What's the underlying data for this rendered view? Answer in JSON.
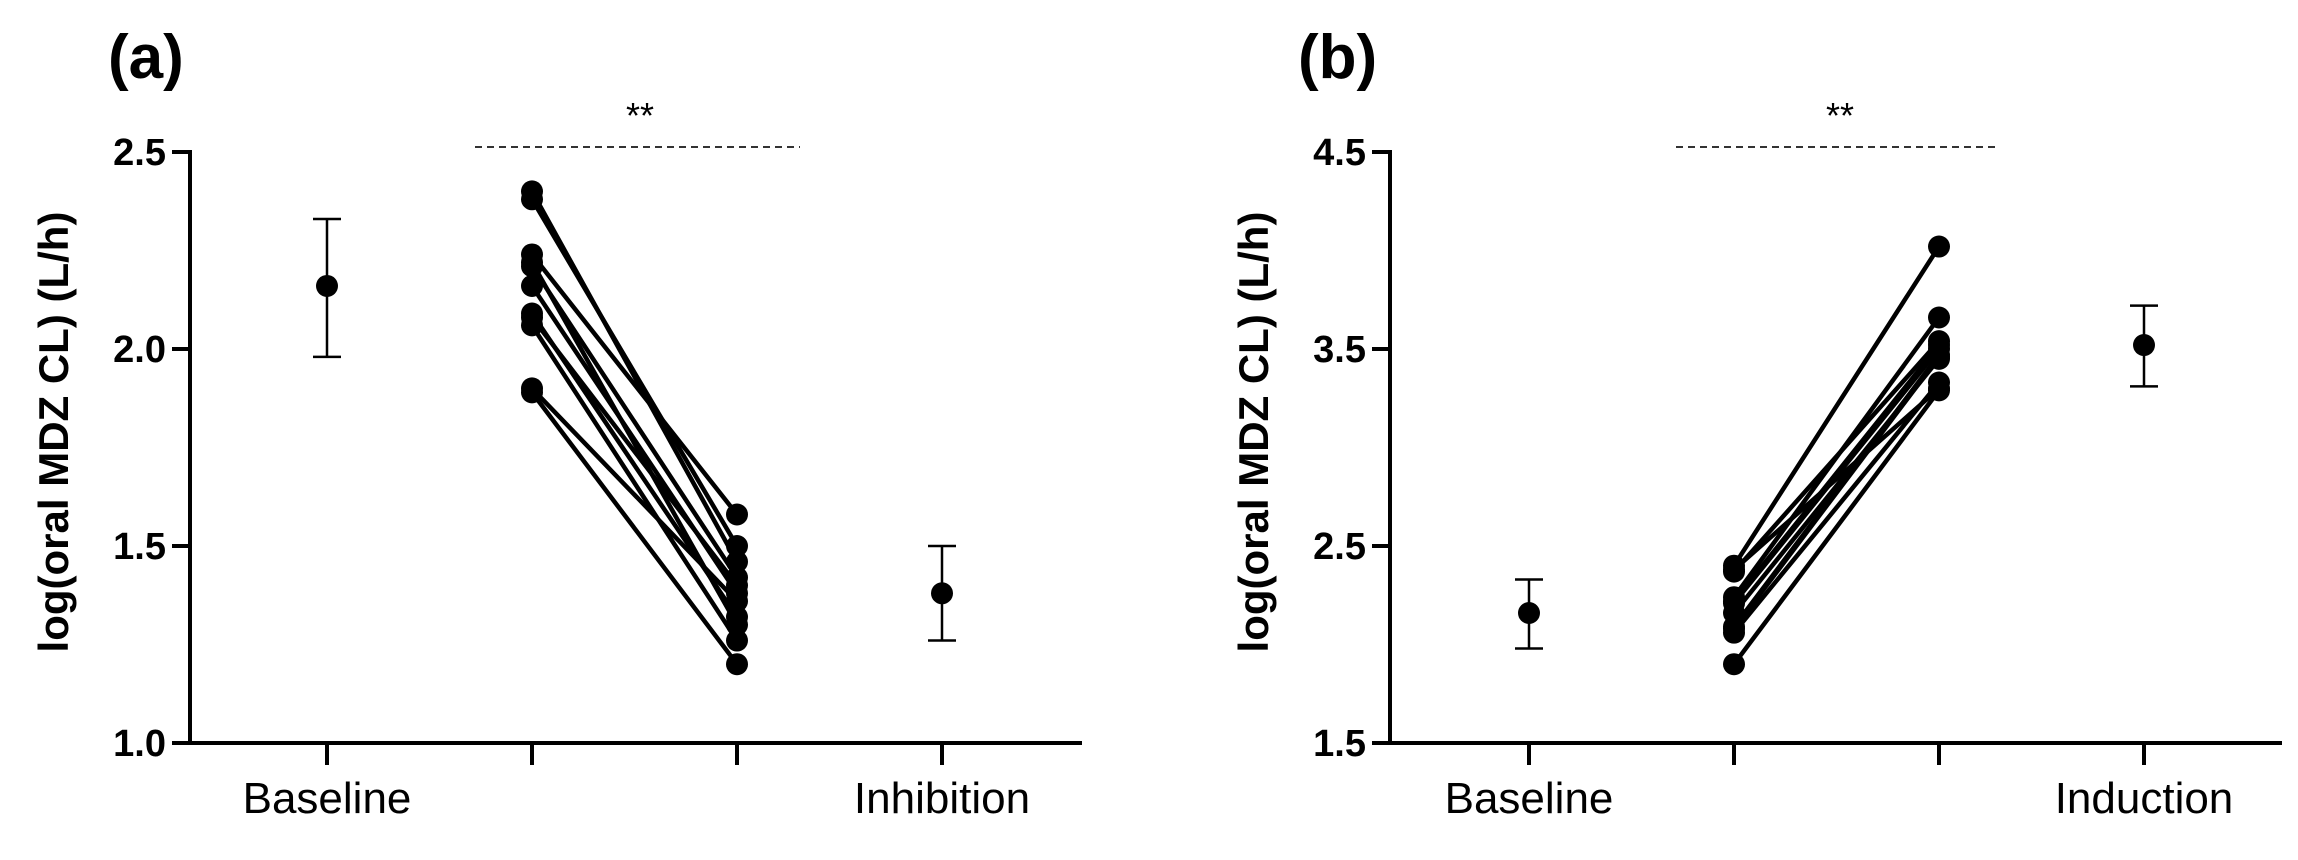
{
  "chart_data": [
    {
      "panel": "(a)",
      "type": "scatter",
      "ylabel": "log(oral MDZ CL) (L/h)",
      "ylim": [
        1.0,
        2.5
      ],
      "yticks": [
        "1.0",
        "1.5",
        "2.0",
        "2.5"
      ],
      "yticks_values": [
        1.0,
        1.5,
        2.0,
        2.5
      ],
      "x_tick_labels": [
        "Baseline",
        "",
        "",
        "Inhibition"
      ],
      "significance": "**",
      "summary_points": [
        {
          "x": 0,
          "label": "Baseline",
          "mean": 2.16,
          "lower": 1.98,
          "upper": 2.33
        },
        {
          "x": 3,
          "label": "Inhibition",
          "mean": 1.38,
          "lower": 1.26,
          "upper": 1.5
        }
      ],
      "paired_series": {
        "x": [
          1,
          2
        ],
        "pairs": [
          [
            2.4,
            1.46
          ],
          [
            2.38,
            1.5
          ],
          [
            2.24,
            1.58
          ],
          [
            2.21,
            1.42
          ],
          [
            2.16,
            1.38
          ],
          [
            2.09,
            1.32
          ],
          [
            2.06,
            1.26
          ],
          [
            1.9,
            1.36
          ],
          [
            1.89,
            1.2
          ],
          [
            2.22,
            1.3
          ],
          [
            2.08,
            1.4
          ]
        ]
      }
    },
    {
      "panel": "(b)",
      "type": "scatter",
      "ylabel": "log(oral MDZ CL) (L/h)",
      "ylim": [
        1.5,
        4.5
      ],
      "yticks": [
        "1.5",
        "2.5",
        "3.5",
        "4.5"
      ],
      "yticks_values": [
        1.5,
        2.5,
        3.5,
        4.5
      ],
      "x_tick_labels": [
        "Baseline",
        "",
        "",
        "Induction"
      ],
      "significance": "**",
      "summary_points": [
        {
          "x": 0,
          "label": "Baseline",
          "mean": 2.16,
          "lower": 1.98,
          "upper": 2.33
        },
        {
          "x": 3,
          "label": "Induction",
          "mean": 3.52,
          "lower": 3.31,
          "upper": 3.72
        }
      ],
      "paired_series": {
        "x": [
          1,
          2
        ],
        "pairs": [
          [
            2.4,
            4.02
          ],
          [
            2.37,
            3.54
          ],
          [
            2.24,
            3.66
          ],
          [
            2.21,
            3.5
          ],
          [
            2.16,
            3.45
          ],
          [
            2.09,
            3.47
          ],
          [
            2.06,
            3.33
          ],
          [
            1.9,
            3.29
          ],
          [
            2.22,
            3.52
          ],
          [
            2.08,
            3.46
          ],
          [
            2.38,
            3.3
          ]
        ]
      }
    }
  ]
}
